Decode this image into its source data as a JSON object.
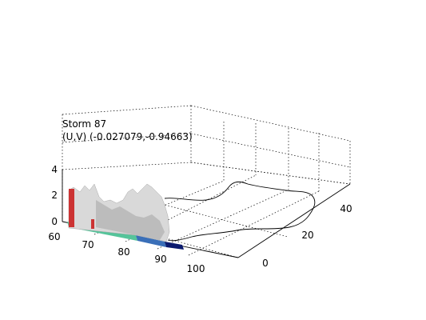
{
  "chart_data": {
    "type": "surface3d",
    "title_line1": "Storm 87",
    "title_line2": "(U,V) (-0.027079,-0.94663)",
    "x_axis": {
      "ticks": [
        "60",
        "70",
        "80",
        "90",
        "100"
      ],
      "range": [
        60,
        100
      ]
    },
    "y_axis": {
      "ticks": [
        "0",
        "20",
        "40"
      ],
      "range": [
        0,
        50
      ]
    },
    "z_axis": {
      "ticks": [
        "0",
        "2",
        "4"
      ],
      "range": [
        0,
        4
      ]
    },
    "grid": true,
    "colors": {
      "surface": "#d9d9d9",
      "surface_shade": "#bcbcbc",
      "slice_red": "#cc3333",
      "floor_green": "#55c49a",
      "floor_blue": "#3a6fb8",
      "floor_dark": "#0b1a6e",
      "contour": "#000000"
    }
  }
}
